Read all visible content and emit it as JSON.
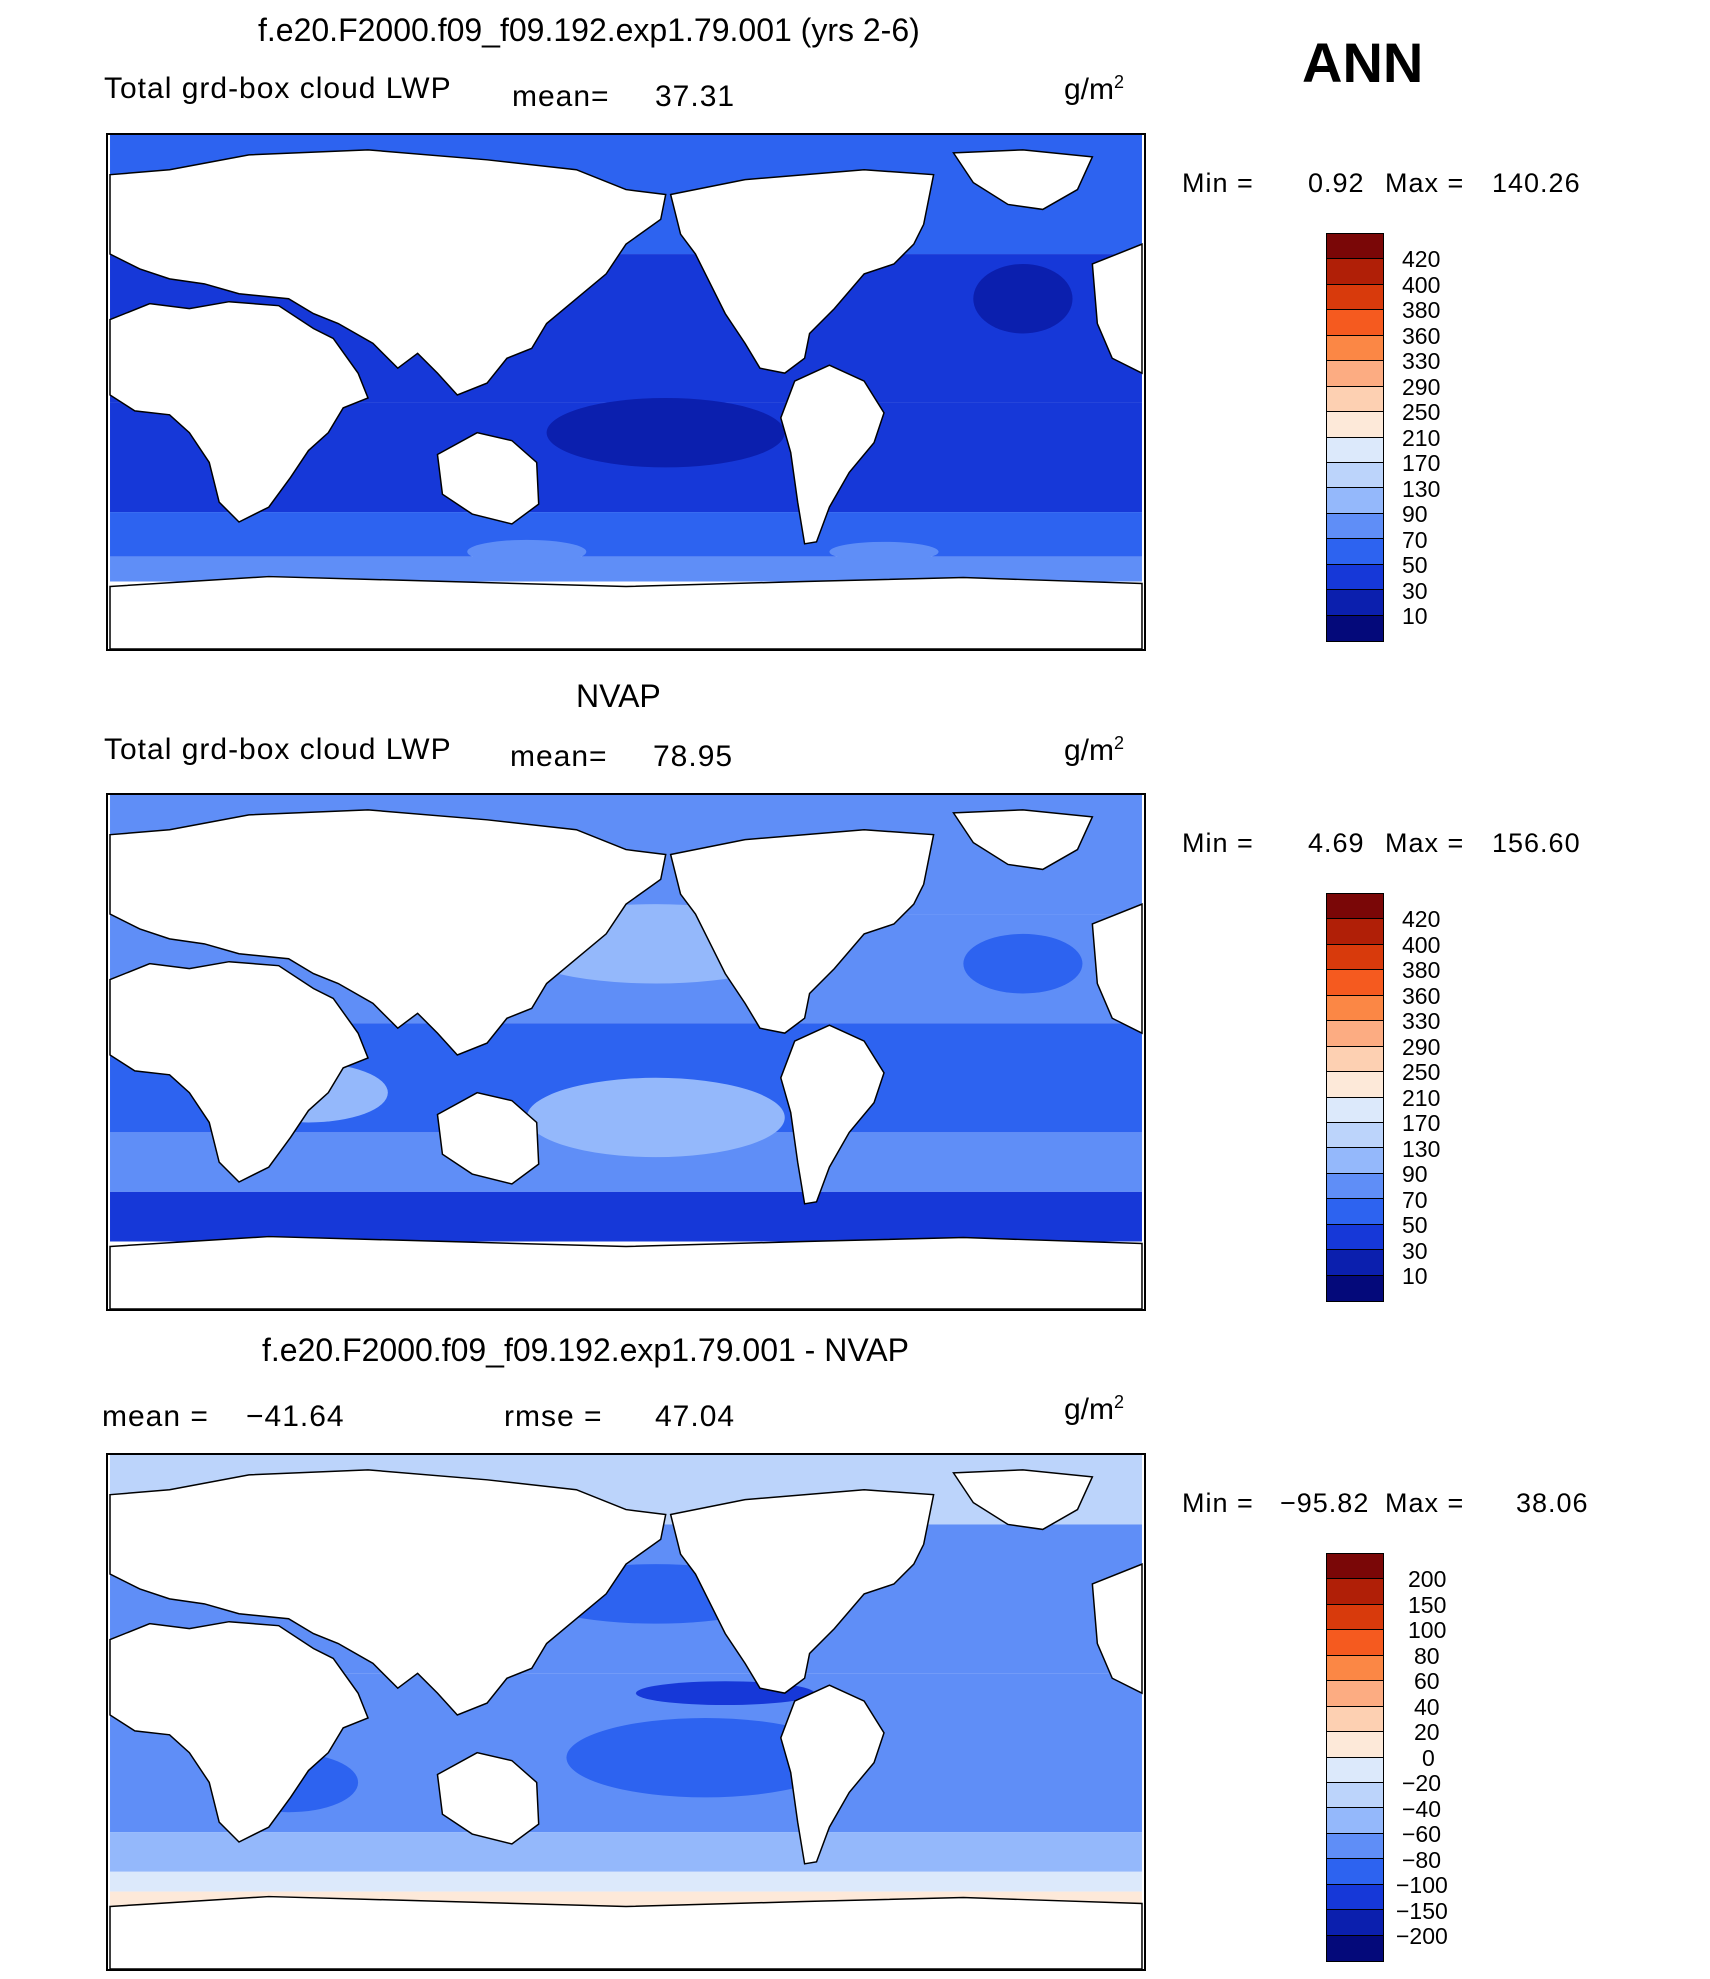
{
  "season": "ANN",
  "unit_main": "g/m",
  "unit_sup": "2",
  "panels": [
    {
      "title": "f.e20.F2000.f09_f09.192.exp1.79.001 (yrs 2-6)",
      "field_label": "Total grd-box cloud LWP",
      "mean_label": "mean=",
      "mean_value": "37.31",
      "min_label": "Min =",
      "min_value": "0.92",
      "max_label": "Max =",
      "max_value": "140.26",
      "colorbar_labels": [
        "420",
        "400",
        "380",
        "360",
        "330",
        "290",
        "250",
        "210",
        "170",
        "130",
        "90",
        "70",
        "50",
        "30",
        "10"
      ]
    },
    {
      "title": "NVAP",
      "field_label": "Total grd-box cloud LWP",
      "mean_label": "mean=",
      "mean_value": "78.95",
      "min_label": "Min =",
      "min_value": "4.69",
      "max_label": "Max =",
      "max_value": "156.60",
      "colorbar_labels": [
        "420",
        "400",
        "380",
        "360",
        "330",
        "290",
        "250",
        "210",
        "170",
        "130",
        "90",
        "70",
        "50",
        "30",
        "10"
      ]
    },
    {
      "title": "f.e20.F2000.f09_f09.192.exp1.79.001 - NVAP",
      "mean_label": "mean =",
      "mean_value": "−41.64",
      "rmse_label": "rmse =",
      "rmse_value": "47.04",
      "min_label": "Min =",
      "min_value": "−95.82",
      "max_label": "Max =",
      "max_value": "38.06",
      "colorbar_labels": [
        "200",
        "150",
        "100",
        "80",
        "60",
        "40",
        "20",
        "0",
        "−20",
        "−40",
        "−60",
        "−80",
        "−100",
        "−150",
        "−200"
      ]
    }
  ],
  "colors": {
    "colorbar_top_to_bottom": [
      "#7a0707",
      "#b01f07",
      "#d83a0c",
      "#f55a1f",
      "#fb8745",
      "#fcac82",
      "#fdd0b2",
      "#fde9d9",
      "#dce9fb",
      "#bcd4fb",
      "#94b8fb",
      "#5f8ef7",
      "#2d63f0",
      "#1638d8",
      "#0b1fae",
      "#04097a"
    ],
    "continent": "#ffffff",
    "outline": "#000000"
  }
}
